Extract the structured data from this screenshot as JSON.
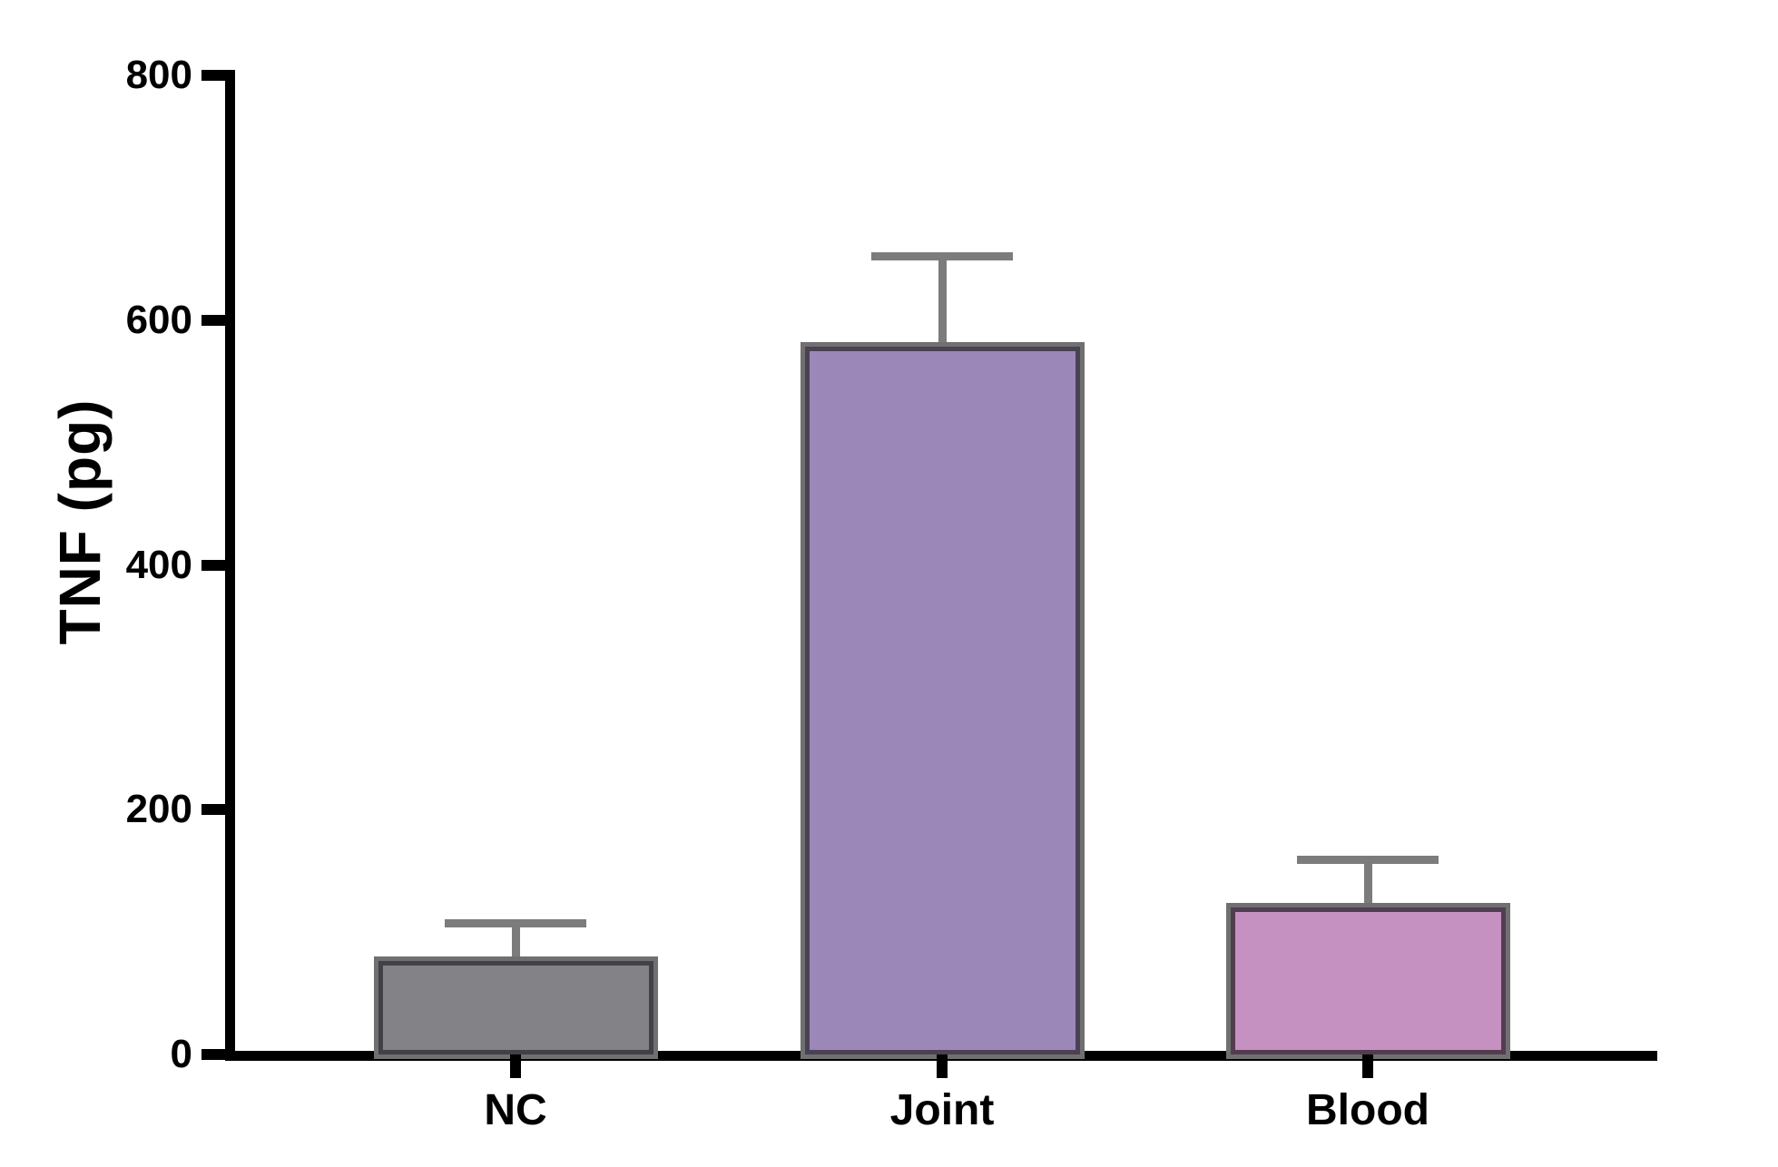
{
  "chart_data": {
    "type": "bar",
    "title": "",
    "xlabel": "",
    "ylabel": "TNF (pg)",
    "categories": [
      "NC",
      "Joint",
      "Blood"
    ],
    "values": [
      80,
      582,
      124
    ],
    "errors_plus": [
      27,
      70,
      35
    ],
    "error_style": "upper half T-bar, SEM",
    "ylim": [
      0,
      800
    ],
    "y_ticks": [
      0,
      200,
      400,
      600,
      800
    ],
    "y_tick_labels": [
      "0",
      "200",
      "400",
      "600",
      "800"
    ],
    "grid": false,
    "legend": null,
    "background_color": "#ffffff",
    "axis_color": "#000000",
    "error_bar_color": "#7c7c7c",
    "bar_outer_border_color": "#707072",
    "bar_fill_colors": [
      "#838387",
      "#9b88b8",
      "#c591c1"
    ],
    "bar_edge_colors": [
      "#414146",
      "#4a4253",
      "#523d4f"
    ]
  }
}
